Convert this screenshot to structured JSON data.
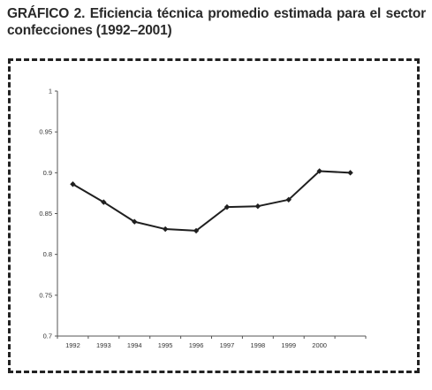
{
  "figure": {
    "title": "GRÁFICO 2. Eficiencia técnica promedio estimada para el sector confecciones (1992–2001)"
  },
  "chart_data": {
    "type": "line",
    "title": "",
    "xlabel": "",
    "ylabel": "",
    "categories": [
      "1992",
      "1993",
      "1994",
      "1995",
      "1996",
      "1997",
      "1998",
      "1999",
      "2000",
      ""
    ],
    "series": [
      {
        "values": [
          0.886,
          0.864,
          0.84,
          0.831,
          0.829,
          0.858,
          0.859,
          0.867,
          0.902,
          0.9
        ]
      }
    ],
    "ylim": [
      0.7,
      1
    ],
    "yticks": [
      "0.7",
      "0.75",
      "0.8",
      "0.85",
      "0.9",
      "0.95",
      "1"
    ],
    "grid": false,
    "legend": "none",
    "colors": {
      "line": "#1f1f1f",
      "axis": "#555555"
    }
  }
}
